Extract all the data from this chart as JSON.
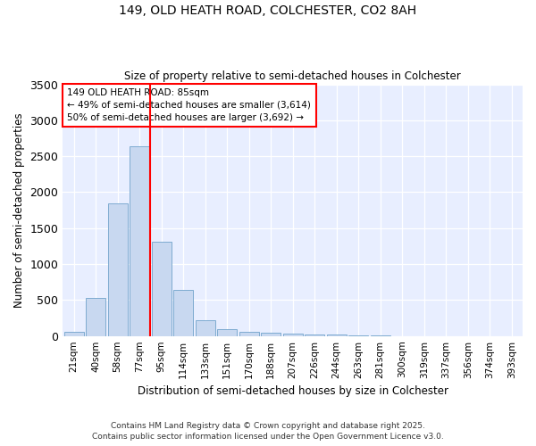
{
  "title1": "149, OLD HEATH ROAD, COLCHESTER, CO2 8AH",
  "title2": "Size of property relative to semi-detached houses in Colchester",
  "xlabel": "Distribution of semi-detached houses by size in Colchester",
  "ylabel": "Number of semi-detached properties",
  "bar_labels": [
    "21sqm",
    "40sqm",
    "58sqm",
    "77sqm",
    "95sqm",
    "114sqm",
    "133sqm",
    "151sqm",
    "170sqm",
    "188sqm",
    "207sqm",
    "226sqm",
    "244sqm",
    "263sqm",
    "281sqm",
    "300sqm",
    "319sqm",
    "337sqm",
    "356sqm",
    "374sqm",
    "393sqm"
  ],
  "bar_values": [
    60,
    530,
    1850,
    2640,
    1310,
    640,
    215,
    95,
    55,
    45,
    30,
    20,
    15,
    5,
    3,
    2,
    1,
    1,
    1,
    1,
    1
  ],
  "bar_color": "#c8d8f0",
  "bar_edgecolor": "#7eabd0",
  "ylim": [
    0,
    3500
  ],
  "yticks": [
    0,
    500,
    1000,
    1500,
    2000,
    2500,
    3000,
    3500
  ],
  "red_line_x": 3.5,
  "annotation_title": "149 OLD HEATH ROAD: 85sqm",
  "annotation_line1": "← 49% of semi-detached houses are smaller (3,614)",
  "annotation_line2": "50% of semi-detached houses are larger (3,692) →",
  "footer1": "Contains HM Land Registry data © Crown copyright and database right 2025.",
  "footer2": "Contains public sector information licensed under the Open Government Licence v3.0.",
  "background_color": "#ffffff",
  "plot_bg_color": "#e8eeff"
}
